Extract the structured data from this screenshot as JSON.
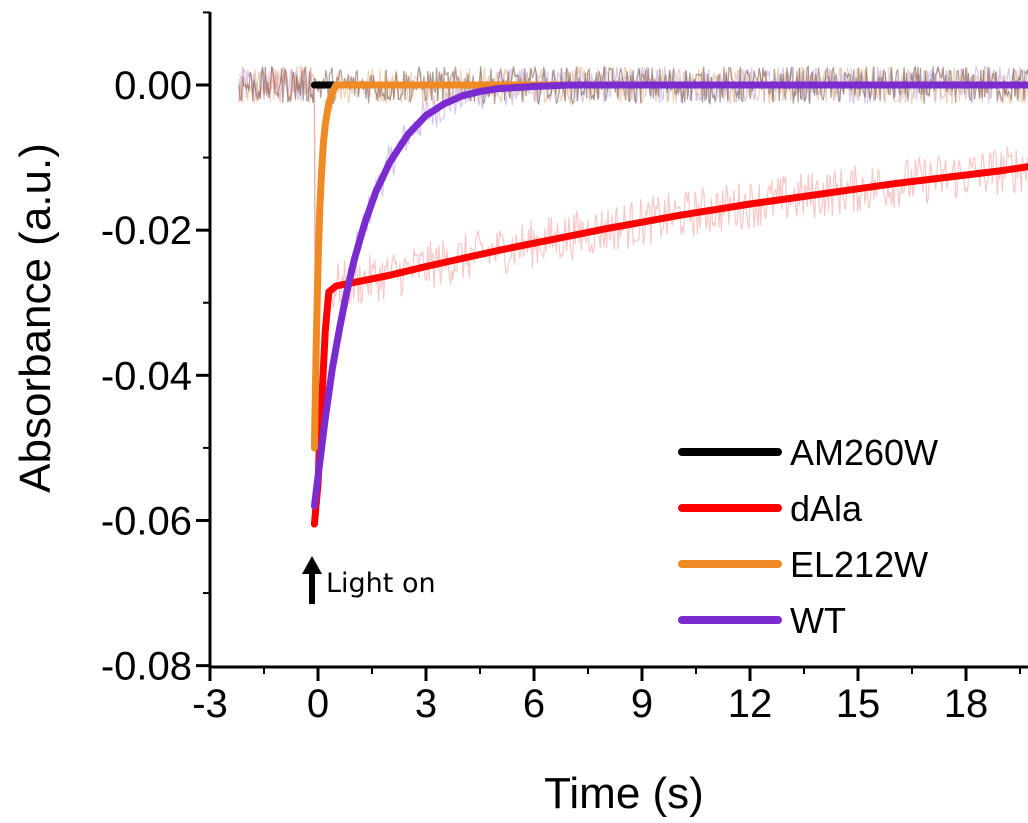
{
  "chart_data": {
    "type": "line",
    "xlabel": "Time (s)",
    "ylabel": "Absorbance (a.u.)",
    "xlim": [
      -3,
      19.8
    ],
    "ylim": [
      -0.08,
      0.01
    ],
    "xticks": [
      -3,
      0,
      3,
      6,
      9,
      12,
      15,
      18
    ],
    "xtick_labels": [
      "-3",
      "0",
      "3",
      "6",
      "9",
      "12",
      "15",
      "18"
    ],
    "yticks": [
      0.0,
      -0.02,
      -0.04,
      -0.06,
      -0.08
    ],
    "ytick_labels": [
      "0.00",
      "-0.02",
      "-0.04",
      "-0.06",
      "-0.08"
    ],
    "legend_position": "bottom-right",
    "annotation": {
      "text": "Light on",
      "x": 0,
      "y": -0.07
    },
    "series": [
      {
        "name": "AM260W",
        "color": "#000000",
        "x": [
          -0.1,
          0.0,
          19.8
        ],
        "y": [
          0.0,
          0.0,
          0.0
        ]
      },
      {
        "name": "dAla",
        "color": "#ff0000",
        "x": [
          -0.1,
          0.0,
          0.1,
          0.2,
          0.3,
          0.5,
          1,
          2,
          3,
          4,
          5,
          6,
          7,
          8,
          9,
          10,
          11,
          12,
          13,
          14,
          15,
          16,
          17,
          18,
          19,
          19.8
        ],
        "y": [
          -0.0605,
          -0.055,
          -0.044,
          -0.034,
          -0.0285,
          -0.0277,
          -0.0272,
          -0.0262,
          -0.025,
          -0.0239,
          -0.0228,
          -0.0218,
          -0.0208,
          -0.0198,
          -0.0189,
          -0.018,
          -0.0172,
          -0.0164,
          -0.0157,
          -0.015,
          -0.0143,
          -0.0136,
          -0.013,
          -0.0124,
          -0.0118,
          -0.0112
        ]
      },
      {
        "name": "EL212W",
        "color": "#f08a24",
        "x": [
          -0.1,
          -0.05,
          0.0,
          0.05,
          0.1,
          0.15,
          0.2,
          0.3,
          0.4,
          0.5,
          19.8
        ],
        "y": [
          -0.05,
          -0.036,
          -0.025,
          -0.017,
          -0.012,
          -0.008,
          -0.0055,
          -0.0025,
          -0.001,
          0.0,
          0.0
        ]
      },
      {
        "name": "WT",
        "color": "#7b2ccf",
        "x": [
          -0.1,
          0.0,
          0.2,
          0.4,
          0.6,
          0.8,
          1.0,
          1.3,
          1.6,
          2.0,
          2.5,
          3.0,
          3.5,
          4.0,
          4.5,
          5.0,
          6.0,
          7.0,
          19.8
        ],
        "y": [
          -0.058,
          -0.054,
          -0.046,
          -0.039,
          -0.0335,
          -0.0285,
          -0.0242,
          -0.019,
          -0.0148,
          -0.0106,
          -0.0068,
          -0.0042,
          -0.0026,
          -0.0015,
          -0.0009,
          -0.0005,
          -0.0002,
          0.0,
          0.0
        ]
      }
    ]
  }
}
